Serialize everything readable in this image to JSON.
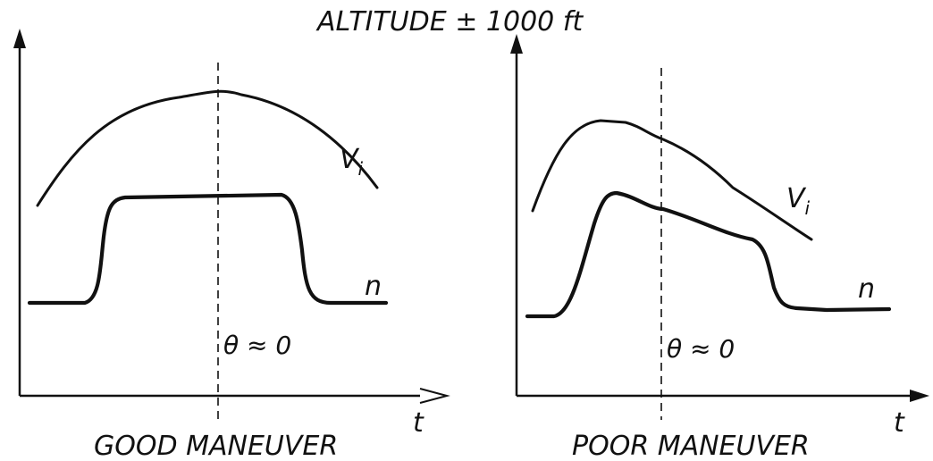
{
  "title": "ALTITUDE ± 1000 ft",
  "panels": [
    {
      "caption": "GOOD MANEUVER",
      "curve_labels": {
        "v": "V",
        "v_sub": "i",
        "n": "n"
      },
      "annotation": "θ ≈ 0",
      "x_axis_label": "t"
    },
    {
      "caption": "POOR MANEUVER",
      "curve_labels": {
        "v": "V",
        "v_sub": "i",
        "n": "n"
      },
      "annotation": "θ ≈ 0",
      "x_axis_label": "t"
    }
  ]
}
